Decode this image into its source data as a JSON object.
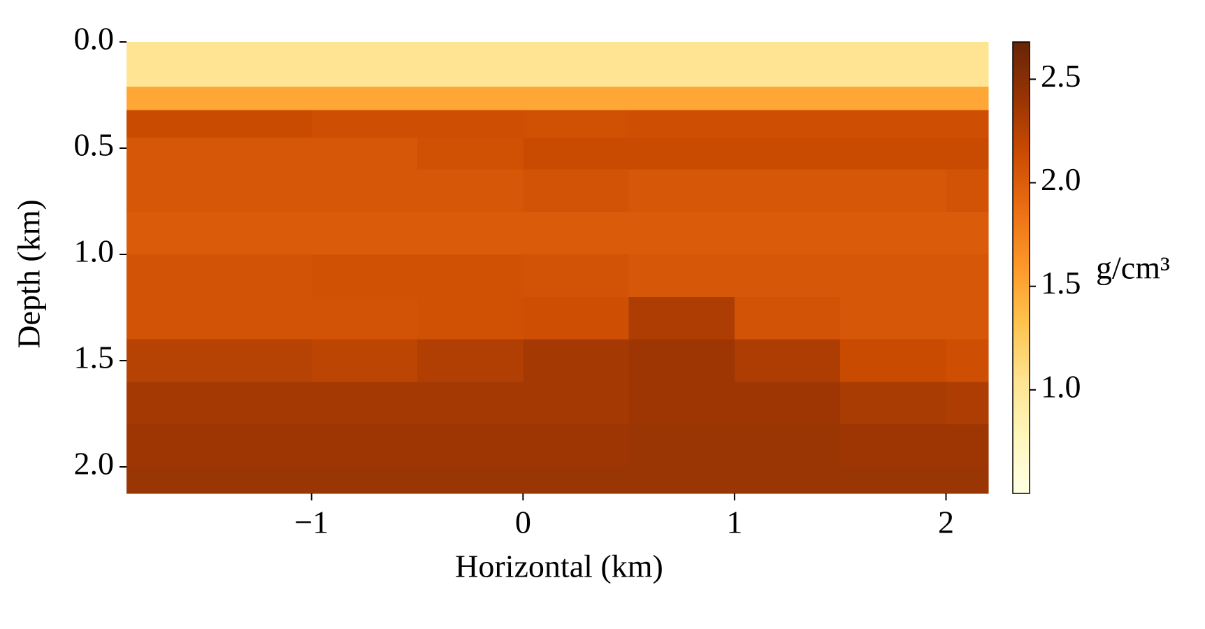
{
  "chart_data": {
    "type": "heatmap",
    "xlabel": "Horizontal (km)",
    "ylabel": "Depth (km)",
    "colorbar_label": "g/cm³",
    "colormap": "YlOrBr",
    "xlim": [
      -1.875,
      2.2
    ],
    "ylim": [
      2.125,
      0
    ],
    "xticks": [
      {
        "value": -1,
        "label": "−1"
      },
      0,
      1,
      2
    ],
    "yticks": [
      {
        "value": 0,
        "label": "0.0"
      },
      0.5,
      {
        "value": 1,
        "label": "1.0"
      },
      1.5,
      {
        "value": 2,
        "label": "2.0"
      }
    ],
    "clim": [
      0.5,
      2.68
    ],
    "cticks": [
      {
        "value": 1,
        "label": "1.0"
      },
      1.5,
      {
        "value": 2,
        "label": "2.0"
      },
      2.5
    ],
    "x_edges": [
      -1.875,
      -1.5,
      -1,
      -0.5,
      0,
      0.5,
      1,
      1.5,
      2,
      2.2
    ],
    "y_edges": [
      0,
      0.21,
      0.32,
      0.45,
      0.6,
      0.8,
      1.0,
      1.2,
      1.4,
      1.6,
      1.8,
      2.0,
      2.125
    ],
    "z": [
      [
        1.03,
        1.03,
        1.03,
        1.03,
        1.03,
        1.03,
        1.03,
        1.03,
        1.03
      ],
      [
        1.5,
        1.5,
        1.5,
        1.5,
        1.5,
        1.5,
        1.5,
        1.5,
        1.5
      ],
      [
        2.15,
        2.15,
        2.12,
        2.12,
        2.1,
        2.12,
        2.12,
        2.12,
        2.12
      ],
      [
        2.05,
        2.05,
        2.05,
        2.1,
        2.15,
        2.15,
        2.15,
        2.15,
        2.15
      ],
      [
        2.05,
        2.05,
        2.05,
        2.05,
        2.08,
        2.05,
        2.05,
        2.05,
        2.08
      ],
      [
        2.02,
        2.02,
        2.02,
        2.02,
        2.02,
        2.02,
        2.02,
        2.02,
        2.02
      ],
      [
        2.08,
        2.08,
        2.1,
        2.1,
        2.08,
        2.05,
        2.05,
        2.05,
        2.05
      ],
      [
        2.08,
        2.08,
        2.08,
        2.1,
        2.12,
        2.3,
        2.08,
        2.05,
        2.05
      ],
      [
        2.25,
        2.25,
        2.22,
        2.28,
        2.35,
        2.38,
        2.3,
        2.15,
        2.12
      ],
      [
        2.35,
        2.35,
        2.35,
        2.35,
        2.35,
        2.38,
        2.38,
        2.32,
        2.3
      ],
      [
        2.38,
        2.38,
        2.38,
        2.38,
        2.38,
        2.4,
        2.4,
        2.38,
        2.38
      ],
      [
        2.4,
        2.4,
        2.4,
        2.4,
        2.4,
        2.4,
        2.4,
        2.4,
        2.4
      ]
    ]
  }
}
